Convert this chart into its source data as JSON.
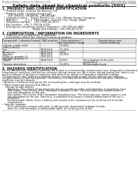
{
  "bg_color": "#ffffff",
  "header_top_left": "Product Name: Lithium Ion Battery Cell",
  "header_top_right": "Substance Number: MM1180GM-000010\nEstablished / Revision: Dec.7.2010",
  "title": "Safety data sheet for chemical products (SDS)",
  "section1_title": "1. PRODUCT AND COMPANY IDENTIFICATION",
  "section1_lines": [
    "  • Product name: Lithium Ion Battery Cell",
    "  • Product code: Cylindrical-type cell",
    "       (UR 18650U, UR18650L, UR18650A)",
    "  • Company name:    Sanyo Electric Co., Ltd., Mobile Energy Company",
    "  • Address:         2-1-1  Kannondani, Sumoto-City, Hyogo, Japan",
    "  • Telephone number:   +81-(799)-26-4111",
    "  • Fax number:  +81-1-799-26-4129",
    "  • Emergency telephone number (daytime): +81-799-26-3662",
    "                                   (Night and holiday): +81-799-26-3131"
  ],
  "section2_title": "2. COMPOSITION / INFORMATION ON INGREDIENTS",
  "section2_intro": "  • Substance or preparation: Preparation",
  "section2_sub": "  • Information about the chemical nature of product:",
  "table_headers": [
    "Component / chemical name",
    "CAS number",
    "Concentration /\nConcentration range",
    "Classification and\nhazard labeling"
  ],
  "table_rows": [
    [
      "Lithium cobalt oxide\n(LiMn₂CoFe₂O₄)",
      "-",
      "30-60%",
      ""
    ],
    [
      "Iron",
      "7439-89-6",
      "10-20%",
      "-"
    ],
    [
      "Aluminum",
      "7429-90-5",
      "2-6%",
      "-"
    ],
    [
      "Graphite\n(Flake or graphite-1)\n(All flake graphite-1)",
      "7782-49-5\n7782-42-5",
      "10-20%",
      ""
    ],
    [
      "Copper",
      "7440-50-8",
      "5-15%",
      "Sensitization of the skin\ngroup No.2"
    ],
    [
      "Organic electrolyte",
      "-",
      "10-20%",
      "Inflammable liquid"
    ]
  ],
  "section3_title": "3. HAZARDS IDENTIFICATION",
  "section3_para": [
    "For the battery cell, chemical materials are stored in a hermetically sealed metal case, designed to withstand",
    "temperature variations and electro-corrosion during normal use. As a result, during normal use, there is no",
    "physical danger of ignition or explosion and there is no danger of hazardous materials leakage.",
    "  If exposed to a fire, added mechanical shocks, decomposed, animal electro without any measure,",
    "the gas release cannot be operated. The battery cell case will be breached of the extreme. Hazardous",
    "materials may be released.",
    "  Moreover, if heated strongly by the surrounding fire, solid gas may be emitted."
  ],
  "section3_bullet1": "• Most important hazard and effects:",
  "section3_human": "    Human health effects:",
  "section3_human_lines": [
    "       Inhalation: The release of the electrolyte has an anesthesia action and stimulates in respiratory tract.",
    "       Skin contact: The release of the electrolyte stimulates a skin. The electrolyte skin contact causes a",
    "       sore and stimulation on the skin.",
    "       Eye contact: The release of the electrolyte stimulates eyes. The electrolyte eye contact causes a sore",
    "       and stimulation on the eye. Especially, a substance that causes a strong inflammation of the eye is",
    "       contained.",
    "       Environmental effects: Since a battery cell remains in the environment, do not throw out it into the",
    "       environment."
  ],
  "section3_specific": "• Specific hazards:",
  "section3_specific_lines": [
    "       If the electrolyte contacts with water, it will generate detrimental hydrogen fluoride.",
    "       Since the said electrolyte is inflammable liquid, do not bring close to fire."
  ]
}
